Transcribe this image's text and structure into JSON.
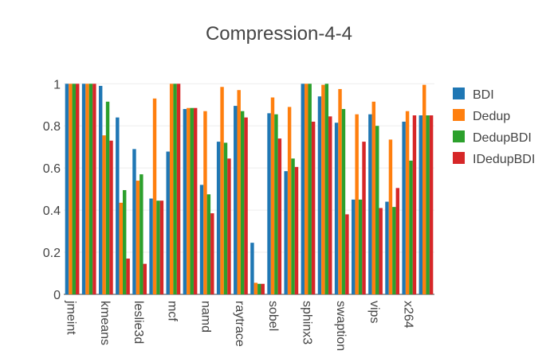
{
  "chart_data": {
    "type": "bar",
    "title": "Compression-4-4",
    "xlabel": "",
    "ylabel": "",
    "ylim": [
      0,
      1.02
    ],
    "yticks": [
      0,
      0.2,
      0.4,
      0.6,
      0.8,
      1
    ],
    "ytick_labels": [
      "0",
      "0.2",
      "0.4",
      "0.6",
      "0.8",
      "1"
    ],
    "grid": true,
    "legend_position": "right",
    "categories": [
      "jmeint",
      "kmeans",
      "leslie3d",
      "mcf",
      "namd",
      "raytrace",
      "sobel",
      "sphinx3",
      "swaption",
      "vips",
      "x264"
    ],
    "series": [
      {
        "name": "BDI",
        "color": "#1f77b4",
        "values": [
          1.0,
          1.0,
          0.99,
          0.84,
          0.69,
          0.455,
          0.678,
          0.88,
          0.52,
          0.725,
          0.895
        ]
      },
      {
        "name": "Dedup",
        "color": "#ff7f0e",
        "values": [
          1.0,
          1.0,
          0.755,
          0.435,
          0.54,
          0.93,
          1.0,
          0.885,
          0.87,
          0.985,
          0.97
        ]
      },
      {
        "name": "DedupBDI",
        "color": "#2ca02c",
        "values": [
          1.0,
          1.0,
          0.915,
          0.495,
          0.57,
          0.445,
          1.0,
          0.885,
          0.475,
          0.72,
          0.87
        ]
      },
      {
        "name": "IDedupBDI",
        "color": "#d62728",
        "values": [
          1.0,
          1.0,
          0.73,
          0.17,
          0.145,
          0.445,
          1.0,
          0.885,
          0.385,
          0.645,
          0.84
        ]
      }
    ],
    "extra_groups": {
      "note_categories": [
        "sobel",
        "sphinx3",
        "swaption",
        "vips",
        "x264"
      ],
      "values": {
        "BDI": [
          0.245,
          0.86,
          0.585,
          0.94,
          0.815,
          0.45,
          0.855,
          0.44,
          0.82,
          0.85
        ],
        "Dedup": [
          0.055,
          0.935,
          0.89,
          0.995,
          0.975,
          0.855,
          0.915,
          0.735,
          0.87,
          0.995
        ],
        "DedupBDI": [
          0.05,
          0.855,
          0.645,
          1.0,
          0.88,
          0.45,
          0.8,
          0.415,
          0.635,
          0.85
        ],
        "IDedupBDI": [
          0.05,
          0.74,
          0.605,
          0.82,
          0.845,
          0.38,
          0.725,
          0.41,
          0.505,
          0.85
        ]
      }
    },
    "all_groups": [
      [
        1.0,
        1.0,
        1.0,
        1.0
      ],
      [
        1.0,
        1.0,
        1.0,
        1.0
      ],
      [
        0.99,
        0.755,
        0.915,
        0.73
      ],
      [
        0.84,
        0.435,
        0.495,
        0.17
      ],
      [
        0.69,
        0.54,
        0.57,
        0.145
      ],
      [
        0.455,
        0.93,
        0.445,
        0.445
      ],
      [
        0.678,
        1.0,
        1.0,
        1.0
      ],
      [
        0.88,
        0.885,
        0.885,
        0.885
      ],
      [
        0.52,
        0.87,
        0.475,
        0.385
      ],
      [
        0.725,
        0.985,
        0.72,
        0.645
      ],
      [
        0.895,
        0.97,
        0.87,
        0.84
      ],
      [
        0.245,
        0.055,
        0.05,
        0.05
      ],
      [
        0.86,
        0.935,
        0.855,
        0.74
      ],
      [
        0.585,
        0.89,
        0.645,
        0.605
      ],
      [
        1.0,
        1.0,
        1.0,
        0.82
      ],
      [
        0.94,
        0.995,
        1.0,
        0.845
      ],
      [
        0.815,
        0.975,
        0.88,
        0.38
      ],
      [
        0.45,
        0.855,
        0.45,
        0.725
      ],
      [
        0.855,
        0.915,
        0.8,
        0.41
      ],
      [
        0.44,
        0.735,
        0.415,
        0.505
      ],
      [
        0.82,
        0.87,
        0.635,
        0.85
      ],
      [
        0.85,
        0.995,
        0.85,
        0.85
      ]
    ],
    "x_tick_labels": [
      "jmeint",
      "kmeans",
      "leslie3d",
      "mcf",
      "namd",
      "raytrace",
      "sobel",
      "sphinx3",
      "swaption",
      "vips",
      "x264"
    ]
  }
}
